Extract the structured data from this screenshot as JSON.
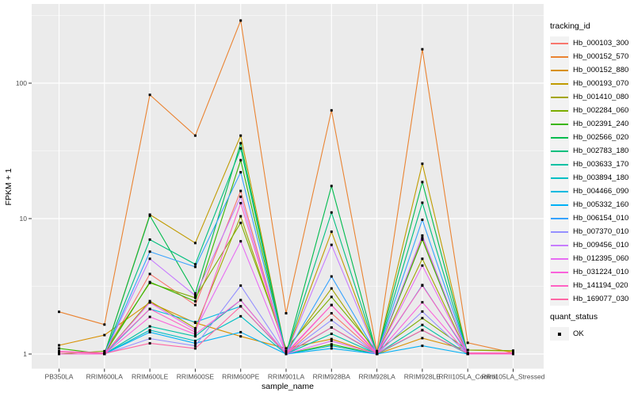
{
  "chart_data": {
    "type": "line",
    "title": "",
    "xlabel": "sample_name",
    "ylabel": "FPKM + 1",
    "y_scale": "log10",
    "y_ticks": [
      1,
      10,
      100
    ],
    "y_minor_ticks": [
      3.162,
      31.62,
      316.2
    ],
    "ylim": [
      1,
      385
    ],
    "grid": "on",
    "legend_position": "right",
    "categories": [
      "PB350LA",
      "RRIM600LA",
      "RRIM600LE",
      "RRIM600SE",
      "RRIM600PE",
      "RRIM901LA",
      "RRIM928BA",
      "RRIM928LA",
      "RRIM928LE",
      "RRII105LA_Control",
      "RRII105LA_Stressed"
    ],
    "point_marker": {
      "shape": "square",
      "color": "#000000",
      "meaning": "quant_status OK"
    },
    "series": [
      {
        "name": "Hb_000103_300",
        "color": "#F8766D",
        "values": [
          1.0,
          1.0,
          3.9,
          2.3,
          16.0,
          1.0,
          2.0,
          1.0,
          7.2,
          1.0,
          1.0
        ]
      },
      {
        "name": "Hb_000152_570",
        "color": "#EA8331",
        "values": [
          2.05,
          1.65,
          82.0,
          41.0,
          290.0,
          2.0,
          63.0,
          1.05,
          178.0,
          1.21,
          1.02
        ]
      },
      {
        "name": "Hb_000152_880",
        "color": "#D89000",
        "values": [
          1.16,
          1.38,
          2.4,
          1.7,
          1.35,
          1.1,
          1.29,
          1.0,
          1.31,
          1.07,
          1.05
        ]
      },
      {
        "name": "Hb_000193_070",
        "color": "#C09B00",
        "values": [
          1.0,
          1.0,
          10.7,
          6.6,
          41.0,
          1.0,
          8.0,
          1.0,
          25.4,
          1.0,
          1.0
        ]
      },
      {
        "name": "Hb_001410_080",
        "color": "#A3A500",
        "values": [
          1.0,
          1.0,
          2.46,
          1.55,
          10.4,
          1.05,
          3.05,
          1.0,
          5.05,
          1.0,
          1.0
        ]
      },
      {
        "name": "Hb_002284_060",
        "color": "#7CAE00",
        "values": [
          1.0,
          1.05,
          3.35,
          2.6,
          9.3,
          1.1,
          2.64,
          1.05,
          1.84,
          1.07,
          1.06
        ]
      },
      {
        "name": "Hb_002391_240",
        "color": "#39B600",
        "values": [
          1.1,
          1.0,
          3.4,
          2.45,
          27.0,
          1.0,
          1.18,
          1.0,
          7.0,
          1.0,
          1.0
        ]
      },
      {
        "name": "Hb_002566_020",
        "color": "#00BB4E",
        "values": [
          1.0,
          1.0,
          10.5,
          2.8,
          36.0,
          1.0,
          17.4,
          1.0,
          18.6,
          1.0,
          1.0
        ]
      },
      {
        "name": "Hb_002783_180",
        "color": "#00BF7D",
        "values": [
          1.0,
          1.0,
          7.0,
          4.6,
          33.0,
          1.0,
          11.1,
          1.0,
          13.1,
          1.0,
          1.0
        ]
      },
      {
        "name": "Hb_003633_170",
        "color": "#00C1A3",
        "values": [
          1.0,
          1.0,
          1.6,
          1.35,
          2.5,
          1.0,
          1.41,
          1.0,
          1.64,
          1.0,
          1.0
        ]
      },
      {
        "name": "Hb_003894_180",
        "color": "#00BFC4",
        "values": [
          1.0,
          1.0,
          1.5,
          1.25,
          1.9,
          1.0,
          1.15,
          1.0,
          1.5,
          1.0,
          1.0
        ]
      },
      {
        "name": "Hb_004466_090",
        "color": "#00BAE0",
        "values": [
          1.0,
          1.0,
          2.15,
          1.72,
          2.25,
          1.0,
          1.57,
          1.0,
          3.23,
          1.0,
          1.0
        ]
      },
      {
        "name": "Hb_005332_160",
        "color": "#00B0F6",
        "values": [
          1.0,
          1.0,
          1.45,
          1.2,
          1.45,
          1.0,
          1.1,
          1.0,
          1.15,
          1.0,
          1.0
        ]
      },
      {
        "name": "Hb_006154_010",
        "color": "#35A2FF",
        "values": [
          1.0,
          1.0,
          5.7,
          4.4,
          22.0,
          1.0,
          3.74,
          1.0,
          9.8,
          1.0,
          1.0
        ]
      },
      {
        "name": "Hb_007370_010",
        "color": "#9590FF",
        "values": [
          1.0,
          1.0,
          1.3,
          1.15,
          3.2,
          1.0,
          1.78,
          1.0,
          2.06,
          1.0,
          1.0
        ]
      },
      {
        "name": "Hb_009456_010",
        "color": "#C77CFF",
        "values": [
          1.0,
          1.0,
          5.05,
          2.7,
          14.5,
          1.0,
          6.4,
          1.0,
          7.5,
          1.0,
          1.0
        ]
      },
      {
        "name": "Hb_012395_060",
        "color": "#E76BF3",
        "values": [
          1.0,
          1.0,
          2.4,
          1.5,
          6.8,
          1.0,
          1.25,
          1.0,
          4.5,
          1.0,
          1.0
        ]
      },
      {
        "name": "Hb_031224_010",
        "color": "#FA62DB",
        "values": [
          1.0,
          1.0,
          1.88,
          1.4,
          2.5,
          1.0,
          2.3,
          1.0,
          2.41,
          1.0,
          1.0
        ]
      },
      {
        "name": "Hb_141194_020",
        "color": "#FF61C3",
        "values": [
          1.05,
          1.02,
          2.15,
          1.45,
          13.0,
          1.02,
          2.3,
          1.02,
          3.2,
          1.02,
          1.02
        ]
      },
      {
        "name": "Hb_169077_030",
        "color": "#FF67A4",
        "values": [
          1.03,
          1.01,
          1.2,
          1.1,
          2.25,
          1.01,
          1.57,
          1.01,
          1.5,
          1.01,
          1.01
        ]
      }
    ],
    "legend": {
      "color_title": "tracking_id",
      "shape_title": "quant_status",
      "shape_entries": [
        {
          "label": "OK"
        }
      ]
    }
  },
  "style": {
    "panel_bg": "#EBEBEB",
    "grid_color": "#FFFFFF",
    "axis_text_color": "#4D4D4D",
    "tick_color": "#333333",
    "legend_key_bg": "#F2F2F2",
    "point_color": "#000000"
  }
}
